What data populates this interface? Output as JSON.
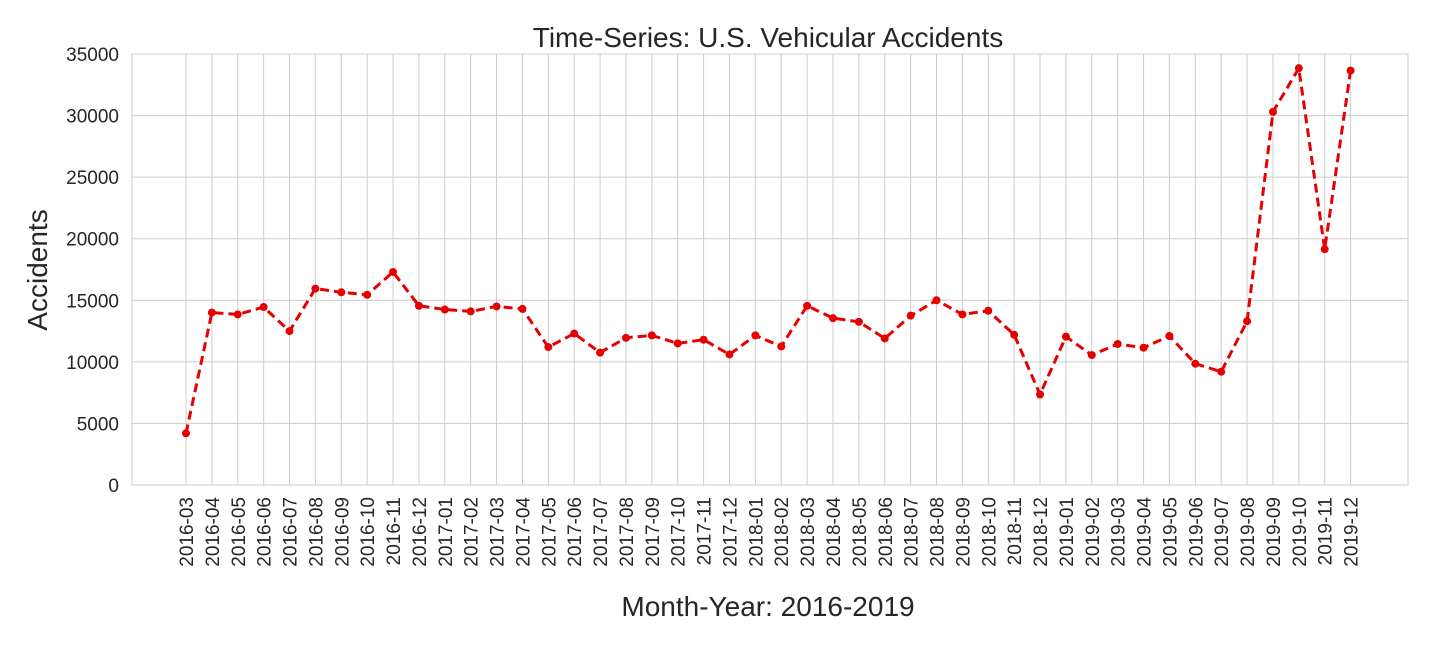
{
  "chart_data": {
    "type": "line",
    "title": "Time-Series: U.S. Vehicular Accidents",
    "xlabel": "Month-Year: 2016-2019",
    "ylabel": "Accidents",
    "ylim": [
      0,
      35000
    ],
    "yticks": [
      0,
      5000,
      10000,
      15000,
      20000,
      25000,
      30000,
      35000
    ],
    "grid": true,
    "line_style": "dashed",
    "marker": "circle",
    "color": "#e60000",
    "categories": [
      "2016-03",
      "2016-04",
      "2016-05",
      "2016-06",
      "2016-07",
      "2016-08",
      "2016-09",
      "2016-10",
      "2016-11",
      "2016-12",
      "2017-01",
      "2017-02",
      "2017-03",
      "2017-04",
      "2017-05",
      "2017-06",
      "2017-07",
      "2017-08",
      "2017-09",
      "2017-10",
      "2017-11",
      "2017-12",
      "2018-01",
      "2018-02",
      "2018-03",
      "2018-04",
      "2018-05",
      "2018-06",
      "2018-07",
      "2018-08",
      "2018-09",
      "2018-10",
      "2018-11",
      "2018-12",
      "2019-01",
      "2019-02",
      "2019-03",
      "2019-04",
      "2019-05",
      "2019-06",
      "2019-07",
      "2019-08",
      "2019-09",
      "2019-10",
      "2019-11",
      "2019-12"
    ],
    "values": [
      4200,
      14000,
      13850,
      14450,
      12500,
      15950,
      15650,
      15450,
      17300,
      14550,
      14250,
      14100,
      14500,
      14300,
      11200,
      12300,
      10750,
      11950,
      12150,
      11500,
      11800,
      10600,
      12150,
      11250,
      14550,
      13550,
      13250,
      11900,
      13750,
      15000,
      13850,
      14150,
      12200,
      7350,
      12050,
      10550,
      11450,
      11150,
      12100,
      9850,
      9200,
      13300,
      30300,
      33850,
      19150,
      33650
    ]
  }
}
